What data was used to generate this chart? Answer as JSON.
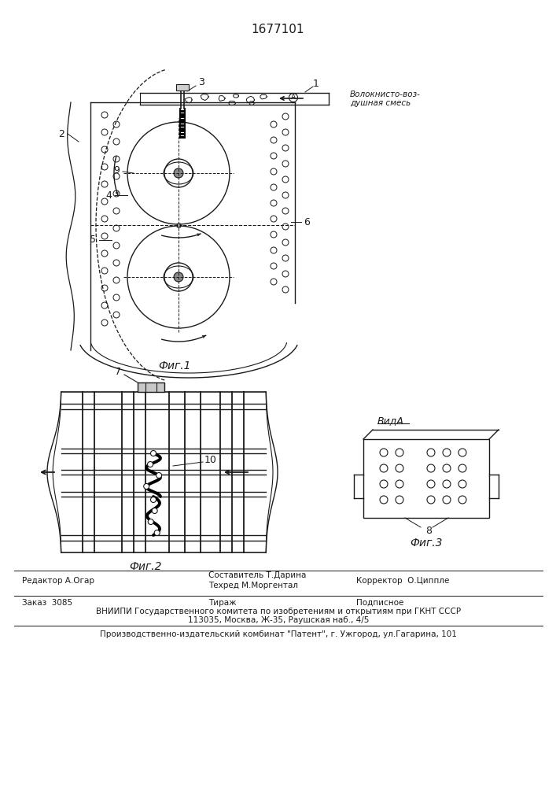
{
  "patent_number": "1677101",
  "fig1_caption": "Фиг.1",
  "fig2_caption": "Фиг.2",
  "fig3_caption": "Фиг.3",
  "vid_a_label": "ВидА",
  "label_voloknisto": "Волокнисто-воз-",
  "label_dushnaya": "душная смесь",
  "footer_editor": "Редактор А.Огар",
  "footer_composer": "Составитель Т.Дарина",
  "footer_techred": "Техред М.Моргентал",
  "footer_corrector": "Корректор  О.Циппле",
  "footer_order": "Заказ  3085",
  "footer_tirazh": "Тираж",
  "footer_podpisnoe": "Подписное",
  "footer_vniiipi": "ВНИИПИ Государственного комитета по изобретениям и открытиям при ГКНТ СССР",
  "footer_address": "113035, Москва, Ж-35, Раушская наб., 4/5",
  "footer_factory": "Производственно-издательский комбинат \"Патент\", г. Ужгород, ул.Гагарина, 101",
  "bg_color": "#ffffff",
  "line_color": "#1a1a1a"
}
